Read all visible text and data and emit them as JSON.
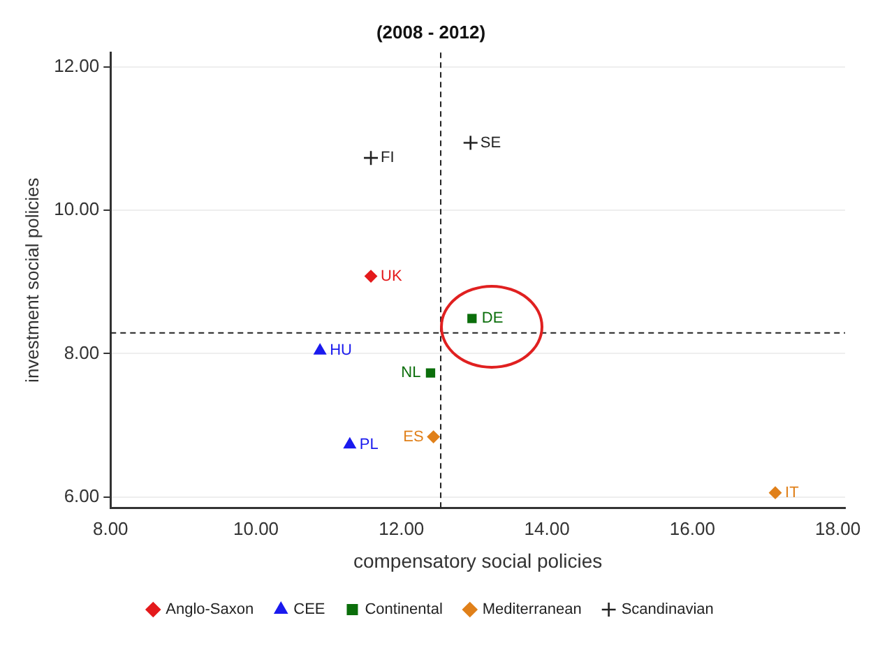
{
  "chart_data": {
    "type": "scatter",
    "title": "(2008 - 2012)",
    "xlabel": "compensatory social policies",
    "ylabel": "investment social policies",
    "xlim": [
      8,
      18.1
    ],
    "ylim": [
      5.85,
      12.2
    ],
    "xticks": [
      {
        "value": 8,
        "label": "8.00"
      },
      {
        "value": 10,
        "label": "10.00"
      },
      {
        "value": 12,
        "label": "12.00"
      },
      {
        "value": 14,
        "label": "14.00"
      },
      {
        "value": 16,
        "label": "16.00"
      },
      {
        "value": 18,
        "label": "18.00"
      }
    ],
    "yticks": [
      {
        "value": 6,
        "label": "6.00"
      },
      {
        "value": 8,
        "label": "8.00"
      },
      {
        "value": 10,
        "label": "10.00"
      },
      {
        "value": 12,
        "label": "12.00"
      }
    ],
    "grid": "y",
    "legend": "bottom",
    "series": [
      {
        "name": "Anglo-Saxon",
        "color": "#e41a1c",
        "marker": "diamond",
        "x": [
          11.58
        ],
        "values": [
          9.08
        ]
      },
      {
        "name": "CEE",
        "color": "#1a1aee",
        "marker": "triangle",
        "x": [
          10.88,
          11.29
        ],
        "values": [
          8.04,
          6.73
        ]
      },
      {
        "name": "Continental",
        "color": "#0b6e0b",
        "marker": "square",
        "x": [
          12.97,
          12.4
        ],
        "values": [
          8.49,
          7.73
        ]
      },
      {
        "name": "Mediterranean",
        "color": "#e0801a",
        "marker": "diamond",
        "x": [
          12.44,
          17.14
        ],
        "values": [
          6.84,
          6.06
        ]
      },
      {
        "name": "Scandinavian",
        "color": "#222222",
        "marker": "cross",
        "x": [
          11.58,
          12.95
        ],
        "values": [
          10.73,
          10.94
        ]
      }
    ],
    "ref_lines": [
      {
        "axis": "x",
        "value": 12.54,
        "line_style": "dashed"
      },
      {
        "axis": "y",
        "value": 8.29,
        "line_style": "dashed"
      }
    ],
    "annotations": [
      {
        "text": "UK",
        "x": 11.58,
        "y": 9.08
      },
      {
        "text": "HU",
        "x": 10.88,
        "y": 8.04
      },
      {
        "text": "PL",
        "x": 11.29,
        "y": 6.73
      },
      {
        "text": "DE",
        "x": 12.97,
        "y": 8.49
      },
      {
        "text": "NL",
        "x": 12.4,
        "y": 7.73
      },
      {
        "text": "ES",
        "x": 12.44,
        "y": 6.84
      },
      {
        "text": "IT",
        "x": 17.14,
        "y": 6.06
      },
      {
        "text": "FI",
        "x": 11.58,
        "y": 10.73
      },
      {
        "text": "SE",
        "x": 12.95,
        "y": 10.94
      }
    ]
  }
}
